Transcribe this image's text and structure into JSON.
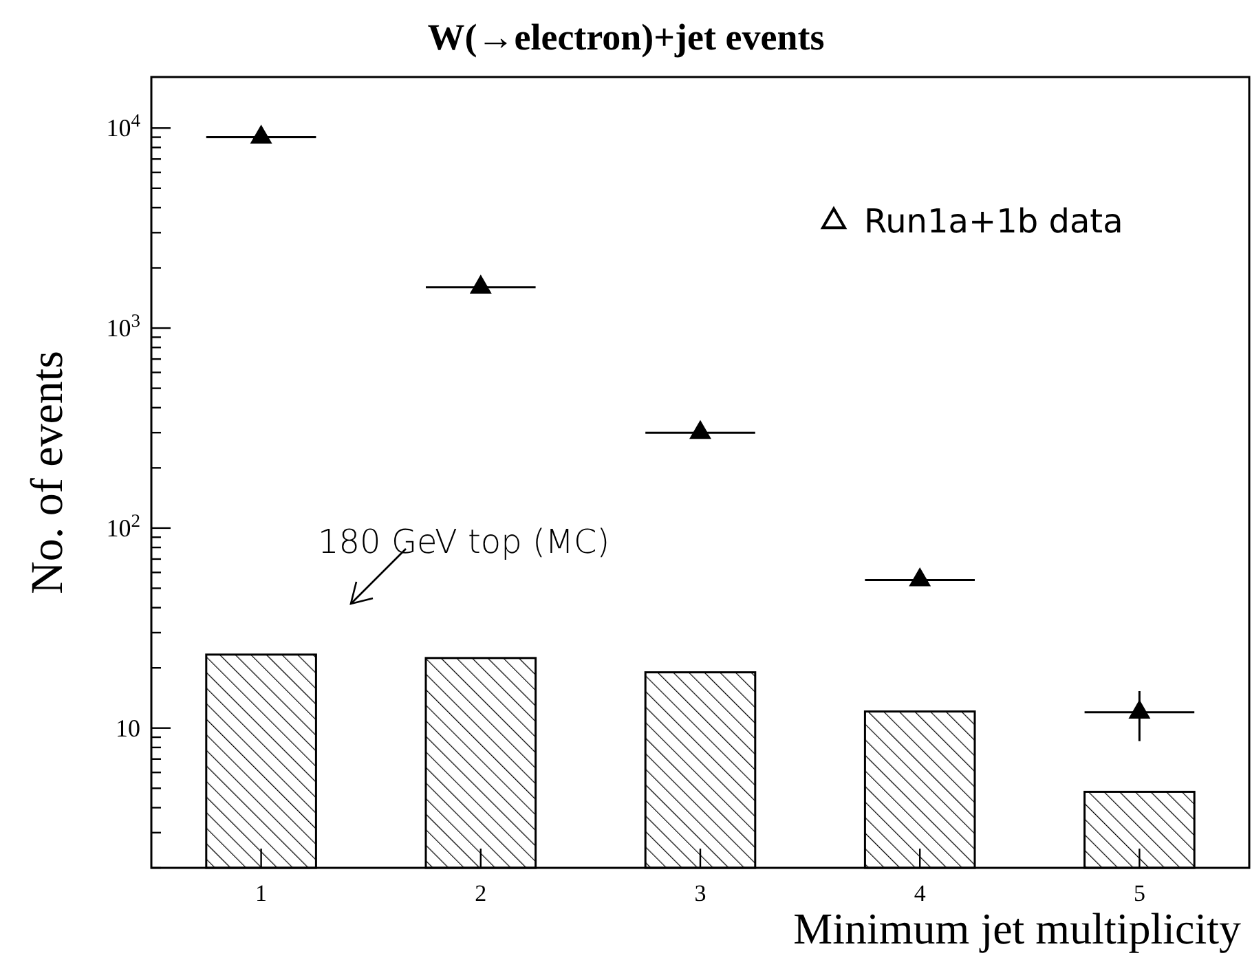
{
  "chart_data": {
    "type": "bar",
    "title": "W(→electron)+jet events",
    "xlabel": "Minimum jet multiplicity",
    "ylabel": "No. of events",
    "x": [
      1,
      2,
      3,
      4,
      5
    ],
    "xlim": [
      0.5,
      5.5
    ],
    "xticks": [
      1,
      2,
      3,
      4,
      5
    ],
    "ylim": [
      2,
      18000
    ],
    "log": true,
    "yticks": [
      {
        "value": 2,
        "label": null
      },
      {
        "value": 3,
        "label": null
      },
      {
        "value": 4,
        "label": null
      },
      {
        "value": 5,
        "label": null
      },
      {
        "value": 6,
        "label": null
      },
      {
        "value": 7,
        "label": null
      },
      {
        "value": 8,
        "label": null
      },
      {
        "value": 9,
        "label": null
      },
      {
        "value": 10,
        "label": "10"
      },
      {
        "value": 20,
        "label": null
      },
      {
        "value": 30,
        "label": null
      },
      {
        "value": 40,
        "label": null
      },
      {
        "value": 50,
        "label": null
      },
      {
        "value": 60,
        "label": null
      },
      {
        "value": 70,
        "label": null
      },
      {
        "value": 80,
        "label": null
      },
      {
        "value": 90,
        "label": null
      },
      {
        "value": 100,
        "label": "10$^{2}$"
      },
      {
        "value": 200,
        "label": null
      },
      {
        "value": 300,
        "label": null
      },
      {
        "value": 400,
        "label": null
      },
      {
        "value": 500,
        "label": null
      },
      {
        "value": 600,
        "label": null
      },
      {
        "value": 700,
        "label": null
      },
      {
        "value": 800,
        "label": null
      },
      {
        "value": 900,
        "label": null
      },
      {
        "value": 1000,
        "label": "10$^{3}$"
      },
      {
        "value": 2000,
        "label": null
      },
      {
        "value": 3000,
        "label": null
      },
      {
        "value": 4000,
        "label": null
      },
      {
        "value": 5000,
        "label": null
      },
      {
        "value": 6000,
        "label": null
      },
      {
        "value": 7000,
        "label": null
      },
      {
        "value": 8000,
        "label": null
      },
      {
        "value": 9000,
        "label": null
      },
      {
        "value": 10000,
        "label": "10$^{4}$"
      }
    ],
    "series": [
      {
        "color": "#000000",
        "values": [
          23.3,
          22.4,
          19,
          12.1,
          4.8
        ]
      },
      {
        "type": "scatter",
        "name": "Run1a+1b data",
        "color": "#000000",
        "marker": "triangle",
        "values": [
          9000,
          1600,
          300,
          55,
          12
        ],
        "xerrors": [
          0.25,
          0.25,
          0.25,
          0.25,
          0.25
        ],
        "errors": [
          null,
          null,
          null,
          null,
          [
            8.6,
            15.3
          ]
        ]
      }
    ],
    "legend": "top right",
    "annotations": [
      "180 GeV top (MC)"
    ]
  }
}
